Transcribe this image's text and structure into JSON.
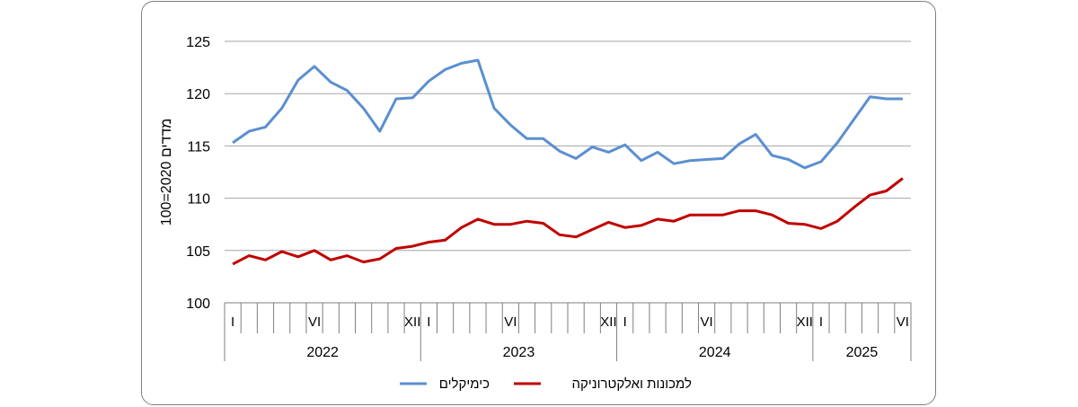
{
  "chart_data": {
    "type": "line",
    "ylabel": "מדדים 2020=100",
    "ylim": [
      100,
      125
    ],
    "yticks": [
      100,
      105,
      110,
      115,
      120,
      125
    ],
    "grid": true,
    "legend_position": "bottom",
    "month_labels": [
      "I",
      "",
      "",
      "",
      "",
      "VI",
      "",
      "",
      "",
      "",
      "",
      "XII",
      "I",
      "",
      "",
      "",
      "",
      "VI",
      "",
      "",
      "",
      "",
      "",
      "XII",
      "I",
      "",
      "",
      "",
      "",
      "VI",
      "",
      "",
      "",
      "",
      "",
      "XII",
      "I",
      "",
      "",
      "",
      "",
      "VI"
    ],
    "years": [
      {
        "label": "2022",
        "months": 12
      },
      {
        "label": "2023",
        "months": 12
      },
      {
        "label": "2024",
        "months": 12
      },
      {
        "label": "2025",
        "months": 6
      }
    ],
    "series": [
      {
        "name": "כימיקלים",
        "color": "#5b8fd0",
        "values": [
          115.3,
          116.4,
          116.8,
          118.6,
          121.3,
          122.6,
          121.1,
          120.3,
          118.6,
          116.4,
          119.5,
          119.6,
          121.2,
          122.3,
          122.9,
          123.2,
          118.6,
          117.0,
          115.7,
          115.7,
          114.5,
          113.8,
          114.9,
          114.4,
          115.1,
          113.6,
          114.4,
          113.3,
          113.6,
          113.7,
          113.8,
          115.2,
          116.1,
          114.1,
          113.7,
          112.9,
          113.5,
          115.3,
          117.5,
          119.7,
          119.5,
          119.5
        ]
      },
      {
        "name": "למכונות ואלקטרוניקה",
        "color": "#c00000",
        "values": [
          103.7,
          104.5,
          104.1,
          104.9,
          104.4,
          105.0,
          104.1,
          104.5,
          103.9,
          104.2,
          105.2,
          105.4,
          105.8,
          106.0,
          107.2,
          108.0,
          107.5,
          107.5,
          107.8,
          107.6,
          106.5,
          106.3,
          107.0,
          107.7,
          107.2,
          107.4,
          108.0,
          107.8,
          108.4,
          108.4,
          108.4,
          108.8,
          108.8,
          108.4,
          107.6,
          107.5,
          107.1,
          107.8,
          109.1,
          110.3,
          110.7,
          111.9
        ]
      }
    ]
  }
}
